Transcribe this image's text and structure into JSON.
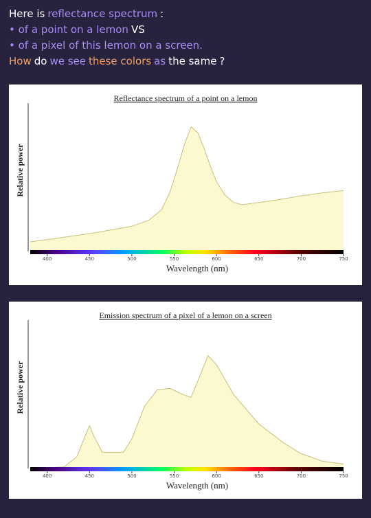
{
  "intro": {
    "lines": [
      [
        {
          "text": "Here is",
          "color": "#ffffff"
        },
        {
          "text": "reflectance spectrum",
          "color": "#a98bf5"
        },
        {
          "text": ":",
          "color": "#ffffff"
        }
      ],
      [
        {
          "text": "• of a point on a lemon",
          "color": "#a98bf5"
        },
        {
          "text": "VS",
          "color": "#ffffff"
        }
      ],
      [
        {
          "text": "• of a pixel of this lemon on a screen.",
          "color": "#a98bf5"
        }
      ],
      [
        {
          "text": "How",
          "color": "#f0a060"
        },
        {
          "text": "do",
          "color": "#ffffff"
        },
        {
          "text": "we see",
          "color": "#a98bf5"
        },
        {
          "text": "these colors",
          "color": "#f0a060"
        },
        {
          "text": "as",
          "color": "#a98bf5"
        },
        {
          "text": "the same",
          "color": "#ffffff"
        },
        {
          "text": "?",
          "color": "#ffffff"
        }
      ]
    ]
  },
  "chart_data": [
    {
      "type": "area",
      "title": "Reflectance spectrum of a point on a lemon",
      "xlabel": "Wavelength (nm)",
      "ylabel": "Relative power",
      "x": [
        380,
        400,
        450,
        500,
        520,
        535,
        545,
        555,
        562,
        570,
        578,
        585,
        593,
        600,
        610,
        620,
        630,
        650,
        675,
        700,
        725,
        750
      ],
      "values": [
        0.065,
        0.08,
        0.12,
        0.17,
        0.21,
        0.28,
        0.4,
        0.58,
        0.72,
        0.84,
        0.8,
        0.7,
        0.57,
        0.47,
        0.38,
        0.33,
        0.315,
        0.33,
        0.35,
        0.375,
        0.395,
        0.41
      ],
      "color": "#fcf8cf",
      "line_color": "#c8c07a",
      "xlim": [
        380,
        750
      ],
      "xticks": [
        400,
        450,
        500,
        550,
        600,
        650,
        700,
        750
      ],
      "ylim": [
        0,
        1
      ]
    },
    {
      "type": "area",
      "title": "Emission spectrum of a pixel of a lemon on a screen",
      "xlabel": "Wavelength (nm)",
      "ylabel": "Relative power",
      "x": [
        380,
        420,
        435,
        445,
        450,
        455,
        465,
        475,
        490,
        500,
        515,
        530,
        545,
        560,
        570,
        580,
        590,
        600,
        620,
        650,
        680,
        700,
        725,
        750
      ],
      "values": [
        0,
        0.01,
        0.08,
        0.22,
        0.29,
        0.22,
        0.11,
        0.11,
        0.11,
        0.2,
        0.42,
        0.53,
        0.54,
        0.5,
        0.48,
        0.62,
        0.76,
        0.7,
        0.5,
        0.3,
        0.17,
        0.1,
        0.05,
        0.03
      ],
      "color": "#fcf8cf",
      "line_color": "#c8c07a",
      "xlim": [
        380,
        750
      ],
      "xticks": [
        400,
        450,
        500,
        550,
        600,
        650,
        700,
        750
      ],
      "ylim": [
        0,
        1
      ]
    }
  ]
}
